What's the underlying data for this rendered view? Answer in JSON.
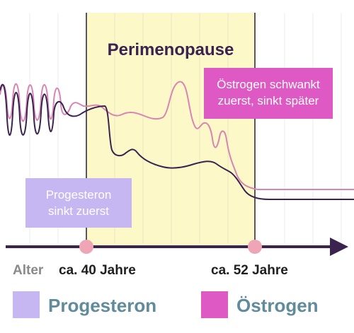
{
  "chart_data": {
    "type": "line",
    "title": "",
    "x_axis_label": "Alter",
    "x_tick_labels": [
      "ca. 40 Jahre",
      "ca. 52 Jahre"
    ],
    "phase": {
      "label": "Perimenopause",
      "color": "#fdf8c8",
      "border_color": "#5a5563"
    },
    "annotations": [
      {
        "text_lines": [
          "Progesteron",
          "sinkt zuerst"
        ],
        "background": "#c6b7f3"
      },
      {
        "text_lines": [
          "Östrogen schwankt",
          "zuerst, sinkt später"
        ],
        "background": "#de59c4"
      }
    ],
    "series": [
      {
        "name": "Progesteron",
        "color": "#3b2350"
      },
      {
        "name": "Östrogen",
        "color": "#d985b3"
      }
    ],
    "legend": {
      "placement": "bottom",
      "items": [
        {
          "label": "Progesteron",
          "swatch": "#c6b7f3",
          "text_color": "#5f8b9a"
        },
        {
          "label": "Östrogen",
          "swatch": "#de59c4",
          "text_color": "#5f8b9a"
        }
      ]
    },
    "marker_color": "#f0a5b6",
    "axis_color": "#3b2350",
    "grid": true
  }
}
